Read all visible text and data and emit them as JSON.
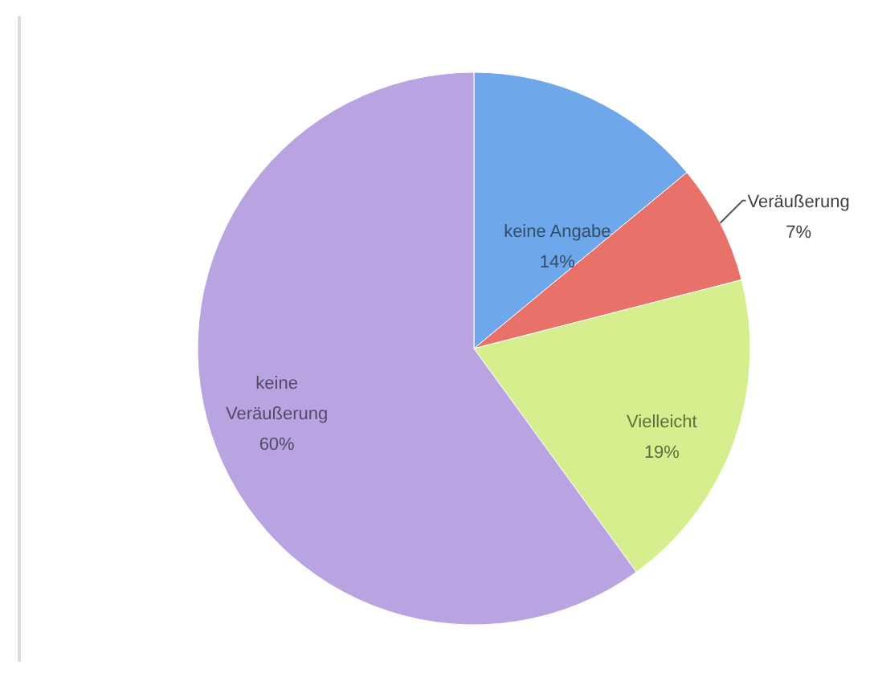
{
  "chart_data": {
    "type": "pie",
    "categories": [
      "keine Angabe",
      "Veräußerung",
      "Vielleicht",
      "keine Veräußerung"
    ],
    "values": [
      14,
      7,
      19,
      60
    ],
    "colors": [
      "#6ea8ea",
      "#e8726a",
      "#d6ef8e",
      "#b9a3e1"
    ],
    "value_labels": [
      "14%",
      "7%",
      "19%",
      "60%"
    ]
  }
}
